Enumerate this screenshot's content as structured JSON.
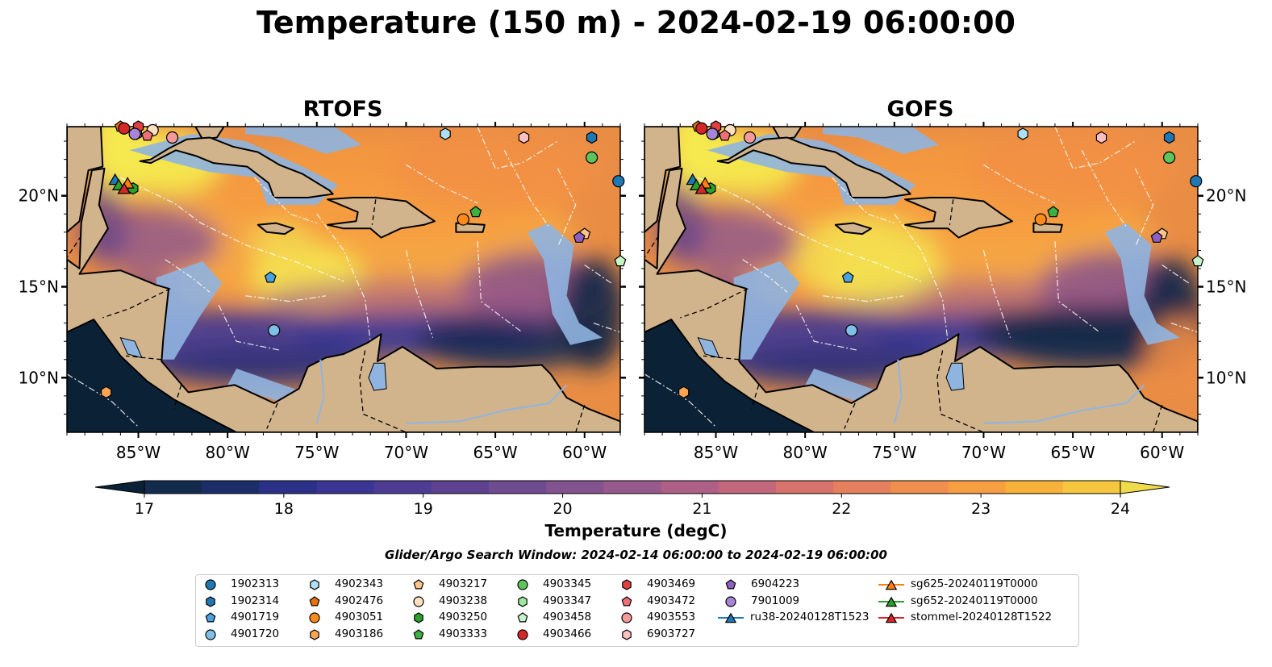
{
  "figure": {
    "title": "Temperature (150 m) - 2024-02-19 06:00:00",
    "search_window": "Glider/Argo Search Window: 2024-02-14 06:00:00 to 2024-02-19 06:00:00"
  },
  "colors": {
    "land": "#d2b48c",
    "shelf": "#8fb4e0",
    "cold": "#0b2236",
    "warm": "#f6d55a",
    "glider_ru38": "#1f77b4",
    "glider_sg625": "#ff7f0e",
    "glider_sg652": "#2ca02c",
    "glider_stommel": "#d62728"
  },
  "chart_data": {
    "type": "heatmap",
    "variable": "Temperature (150 m)",
    "panels": [
      {
        "title": "RTOFS",
        "model": "RTOFS"
      },
      {
        "title": "GOFS",
        "model": "GOFS"
      }
    ],
    "x_ticks": [
      "85°W",
      "80°W",
      "75°W",
      "70°W",
      "65°W",
      "60°W"
    ],
    "x_tick_values": [
      -85,
      -80,
      -75,
      -70,
      -65,
      -60
    ],
    "y_ticks": [
      "20°N",
      "15°N",
      "10°N"
    ],
    "y_tick_values": [
      20,
      15,
      10
    ],
    "xlim": [
      -89,
      -58
    ],
    "ylim": [
      7,
      23.8
    ],
    "colorbar": {
      "label": "Temperature (degC)",
      "ticks": [
        "17",
        "18",
        "19",
        "20",
        "21",
        "22",
        "23",
        "24"
      ],
      "vmin": 16.75,
      "vmax": 24.25,
      "step": 0.5,
      "extend": "both",
      "colors": [
        "#0b2236",
        "#132c4e",
        "#1c2e6a",
        "#2b3189",
        "#3b3595",
        "#4d3b94",
        "#5e4291",
        "#6f4c8f",
        "#83538f",
        "#985a8d",
        "#ae6087",
        "#c3687c",
        "#d7726d",
        "#e6805c",
        "#f08f4d",
        "#f79e40",
        "#f8b23a",
        "#f6c73e",
        "#f0dc4a"
      ]
    },
    "markers": [
      {
        "id": "1902313",
        "lon": -58.1,
        "lat": 20.8,
        "marker": "circle",
        "color": "#1f77b4"
      },
      {
        "id": "1902314",
        "lon": -59.6,
        "lat": 23.2,
        "marker": "hexagon",
        "color": "#1f77b4"
      },
      {
        "id": "4901719",
        "lon": -77.6,
        "lat": 15.5,
        "marker": "pentagon",
        "color": "#4aa3df"
      },
      {
        "id": "4901720",
        "lon": -77.4,
        "lat": 12.6,
        "marker": "circle",
        "color": "#7fbfe8"
      },
      {
        "id": "4902343",
        "lon": -67.8,
        "lat": 23.4,
        "marker": "hexagon",
        "color": "#aee0f5"
      },
      {
        "id": "4902476",
        "lon": -86.0,
        "lat": 23.8,
        "marker": "pentagon",
        "color": "#e8710a"
      },
      {
        "id": "4903051",
        "lon": -66.8,
        "lat": 18.7,
        "marker": "circle",
        "color": "#ff8c1a"
      },
      {
        "id": "4903186",
        "lon": -86.8,
        "lat": 9.2,
        "marker": "hexagon",
        "color": "#ffa552"
      },
      {
        "id": "4903217",
        "lon": -60.0,
        "lat": 17.9,
        "marker": "pentagon",
        "color": "#ffc48a"
      },
      {
        "id": "4903238",
        "lon": -84.2,
        "lat": 23.6,
        "marker": "circle",
        "color": "#ffe0c0"
      },
      {
        "id": "4903250",
        "lon": -85.3,
        "lat": 20.4,
        "marker": "hexagon",
        "color": "#2ca02c"
      },
      {
        "id": "4903333",
        "lon": -66.1,
        "lat": 19.1,
        "marker": "pentagon",
        "color": "#3cb043"
      },
      {
        "id": "4903345",
        "lon": -59.6,
        "lat": 22.1,
        "marker": "circle",
        "color": "#5cc55c"
      },
      {
        "id": "4903347",
        "lon": -85.1,
        "lat": 23.4,
        "marker": "hexagon",
        "color": "#9be79b"
      },
      {
        "id": "4903458",
        "lon": -58.0,
        "lat": 16.4,
        "marker": "pentagon",
        "color": "#c8f5c8"
      },
      {
        "id": "4903466",
        "lon": -85.8,
        "lat": 23.7,
        "marker": "circle",
        "color": "#d62728"
      },
      {
        "id": "4903469",
        "lon": -85.0,
        "lat": 23.8,
        "marker": "hexagon",
        "color": "#e04040"
      },
      {
        "id": "4903472",
        "lon": -84.5,
        "lat": 23.3,
        "marker": "pentagon",
        "color": "#f0707a"
      },
      {
        "id": "4903553",
        "lon": -83.1,
        "lat": 23.2,
        "marker": "circle",
        "color": "#f49a9a"
      },
      {
        "id": "6903727",
        "lon": -63.4,
        "lat": 23.2,
        "marker": "hexagon",
        "color": "#ffc0c0"
      },
      {
        "id": "6904223",
        "lon": -60.3,
        "lat": 17.7,
        "marker": "pentagon",
        "color": "#8e5fc2"
      },
      {
        "id": "7901009",
        "lon": -85.2,
        "lat": 23.4,
        "marker": "circle",
        "color": "#a884d8"
      },
      {
        "id": "ru38-20240128T1523",
        "lon": -86.3,
        "lat": 20.9,
        "marker": "triangle",
        "color": "#1f77b4",
        "line": true
      },
      {
        "id": "sg625-20240119T0000",
        "lon": -85.6,
        "lat": 20.7,
        "marker": "triangle",
        "color": "#ff7f0e",
        "line": true
      },
      {
        "id": "sg652-20240119T0000",
        "lon": -86.1,
        "lat": 20.6,
        "marker": "triangle",
        "color": "#2ca02c",
        "line": true
      },
      {
        "id": "stommel-20240128T1522",
        "lon": -85.8,
        "lat": 20.4,
        "marker": "triangle",
        "color": "#d62728",
        "line": true
      }
    ]
  }
}
